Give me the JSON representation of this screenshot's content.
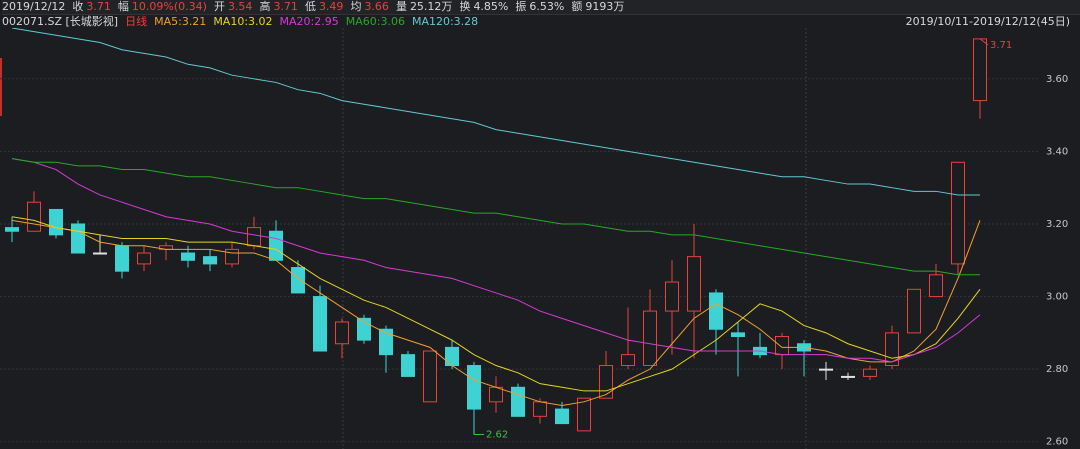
{
  "header": {
    "date": "2019/12/12",
    "fields": [
      {
        "label": "收",
        "value": "3.71",
        "color": "#e8413b"
      },
      {
        "label": "幅",
        "value": "10.09%(0.34)",
        "color": "#e8413b"
      },
      {
        "label": "开",
        "value": "3.54",
        "color": "#e8413b"
      },
      {
        "label": "高",
        "value": "3.71",
        "color": "#e8413b"
      },
      {
        "label": "低",
        "value": "3.49",
        "color": "#e8413b"
      },
      {
        "label": "均",
        "value": "3.66",
        "color": "#e8413b"
      },
      {
        "label": "量",
        "value": "25.12万",
        "color": "#d8d8d8"
      },
      {
        "label": "换",
        "value": "4.85%",
        "color": "#d8d8d8"
      },
      {
        "label": "振",
        "value": "6.53%",
        "color": "#d8d8d8"
      },
      {
        "label": "额",
        "value": "9193万",
        "color": "#d8d8d8"
      }
    ]
  },
  "chart_data": {
    "type": "candlestick",
    "symbol": "002071.SZ [长城影视]",
    "date_range": "2019/10/11-2019/12/12(45日)",
    "categories": [
      null,
      null,
      null,
      null,
      null,
      null,
      null,
      null,
      null,
      null,
      null,
      null,
      null,
      null,
      null,
      null,
      null,
      null,
      null,
      null,
      null,
      null,
      null,
      null,
      null,
      null,
      null,
      null,
      null,
      null,
      null,
      null,
      null,
      null,
      null,
      null,
      null,
      null,
      null,
      null,
      null,
      null,
      null,
      null,
      null
    ],
    "ylim": [
      2.58,
      3.74
    ],
    "yticks": [
      {
        "value": 2.6,
        "label": "2.60"
      },
      {
        "value": 2.8,
        "label": "2.80"
      },
      {
        "value": 3.0,
        "label": "3.00"
      },
      {
        "value": 3.2,
        "label": "3.20"
      },
      {
        "value": 3.4,
        "label": "3.40"
      },
      {
        "value": 3.6,
        "label": "3.60"
      }
    ],
    "grid": true,
    "candles": {
      "name": "日线",
      "color_up": "#e8413b",
      "color_down": "#3ed2d2",
      "color_flat": "#e0e0e0",
      "open": [
        3.19,
        3.18,
        3.24,
        3.2,
        3.12,
        3.14,
        3.09,
        3.13,
        3.12,
        3.11,
        3.09,
        3.14,
        3.18,
        3.08,
        3.0,
        2.87,
        2.94,
        2.91,
        2.84,
        2.71,
        2.86,
        2.81,
        2.71,
        2.75,
        2.67,
        2.69,
        2.63,
        2.72,
        2.81,
        2.81,
        2.96,
        2.96,
        3.01,
        2.9,
        2.86,
        2.84,
        2.87,
        2.8,
        2.78,
        2.78,
        2.81,
        2.9,
        3.0,
        3.09,
        3.54
      ],
      "high": [
        3.22,
        3.29,
        3.24,
        3.21,
        3.17,
        3.15,
        3.14,
        3.15,
        3.14,
        3.13,
        3.15,
        3.22,
        3.21,
        3.1,
        3.03,
        2.94,
        2.95,
        2.92,
        2.85,
        2.85,
        2.88,
        2.82,
        2.78,
        2.76,
        2.72,
        2.71,
        2.72,
        2.85,
        2.97,
        3.02,
        3.1,
        3.2,
        3.02,
        2.93,
        2.9,
        2.9,
        2.88,
        2.82,
        2.79,
        2.81,
        2.92,
        3.02,
        3.09,
        3.37,
        3.71
      ],
      "low": [
        3.15,
        3.18,
        3.16,
        3.12,
        3.12,
        3.05,
        3.07,
        3.1,
        3.08,
        3.07,
        3.08,
        3.13,
        3.1,
        3.01,
        2.85,
        2.83,
        2.87,
        2.79,
        2.78,
        2.71,
        2.8,
        2.62,
        2.68,
        2.67,
        2.65,
        2.65,
        2.63,
        2.72,
        2.8,
        2.81,
        2.84,
        2.83,
        2.84,
        2.78,
        2.83,
        2.8,
        2.78,
        2.77,
        2.77,
        2.77,
        2.8,
        2.9,
        3.0,
        3.06,
        3.49
      ],
      "close": [
        3.18,
        3.26,
        3.17,
        3.12,
        3.12,
        3.07,
        3.12,
        3.14,
        3.1,
        3.09,
        3.13,
        3.19,
        3.1,
        3.01,
        2.85,
        2.93,
        2.88,
        2.84,
        2.78,
        2.85,
        2.81,
        2.69,
        2.75,
        2.67,
        2.71,
        2.65,
        2.72,
        2.81,
        2.84,
        2.96,
        3.04,
        3.11,
        2.91,
        2.89,
        2.84,
        2.89,
        2.85,
        2.8,
        2.78,
        2.8,
        2.9,
        3.02,
        3.06,
        3.37,
        3.71
      ]
    },
    "max_label": "3.71",
    "min_label": "2.62",
    "series": [
      {
        "name": "MA5:3.21",
        "color": "#f0a030",
        "values": [
          3.21,
          3.2,
          3.19,
          3.18,
          3.15,
          3.14,
          3.14,
          3.13,
          3.13,
          3.13,
          3.12,
          3.12,
          3.1,
          3.05,
          3.01,
          2.97,
          2.93,
          2.9,
          2.88,
          2.86,
          2.81,
          2.77,
          2.75,
          2.73,
          2.71,
          2.7,
          2.71,
          2.73,
          2.77,
          2.8,
          2.87,
          2.94,
          2.98,
          2.95,
          2.91,
          2.86,
          2.86,
          2.85,
          2.83,
          2.82,
          2.82,
          2.85,
          2.91,
          3.05,
          3.21
        ]
      },
      {
        "name": "MA10:3.02",
        "color": "#e6d420",
        "values": [
          3.22,
          3.21,
          3.19,
          3.18,
          3.17,
          3.16,
          3.16,
          3.16,
          3.15,
          3.15,
          3.15,
          3.14,
          3.13,
          3.09,
          3.05,
          3.02,
          2.99,
          2.97,
          2.94,
          2.91,
          2.88,
          2.84,
          2.81,
          2.79,
          2.76,
          2.75,
          2.74,
          2.74,
          2.76,
          2.78,
          2.8,
          2.84,
          2.88,
          2.93,
          2.98,
          2.96,
          2.92,
          2.9,
          2.87,
          2.85,
          2.83,
          2.84,
          2.87,
          2.94,
          3.02
        ]
      },
      {
        "name": "MA20:2.95",
        "color": "#d63ad6",
        "values": [
          3.38,
          3.37,
          3.35,
          3.31,
          3.28,
          3.26,
          3.24,
          3.22,
          3.21,
          3.2,
          3.18,
          3.17,
          3.16,
          3.14,
          3.12,
          3.11,
          3.1,
          3.08,
          3.07,
          3.06,
          3.05,
          3.03,
          3.01,
          2.99,
          2.96,
          2.94,
          2.92,
          2.9,
          2.88,
          2.87,
          2.86,
          2.85,
          2.85,
          2.85,
          2.85,
          2.84,
          2.84,
          2.84,
          2.83,
          2.83,
          2.82,
          2.84,
          2.86,
          2.9,
          2.95
        ]
      },
      {
        "name": "MA60:3.06",
        "color": "#28a828",
        "values": [
          3.38,
          3.37,
          3.37,
          3.36,
          3.36,
          3.35,
          3.35,
          3.34,
          3.33,
          3.33,
          3.32,
          3.31,
          3.3,
          3.3,
          3.29,
          3.28,
          3.27,
          3.27,
          3.26,
          3.25,
          3.24,
          3.23,
          3.23,
          3.22,
          3.21,
          3.2,
          3.2,
          3.19,
          3.18,
          3.18,
          3.17,
          3.17,
          3.16,
          3.15,
          3.14,
          3.13,
          3.12,
          3.11,
          3.1,
          3.09,
          3.08,
          3.07,
          3.07,
          3.06,
          3.06
        ]
      },
      {
        "name": "MA120:3.28",
        "color": "#62c8d4",
        "values": [
          3.74,
          3.73,
          3.72,
          3.71,
          3.7,
          3.68,
          3.67,
          3.66,
          3.64,
          3.63,
          3.61,
          3.6,
          3.59,
          3.57,
          3.56,
          3.54,
          3.53,
          3.52,
          3.51,
          3.5,
          3.49,
          3.48,
          3.46,
          3.45,
          3.44,
          3.43,
          3.42,
          3.41,
          3.4,
          3.39,
          3.38,
          3.37,
          3.36,
          3.35,
          3.34,
          3.33,
          3.33,
          3.32,
          3.31,
          3.31,
          3.3,
          3.29,
          3.29,
          3.28,
          3.28
        ]
      }
    ]
  }
}
